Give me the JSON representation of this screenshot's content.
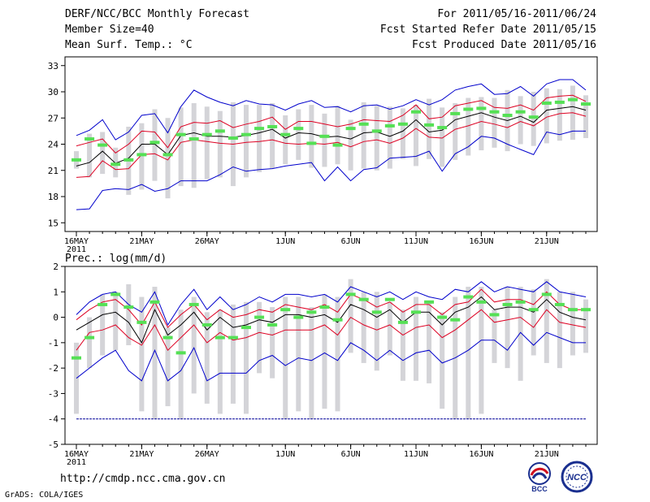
{
  "header": {
    "title": "DERF/NCC/BCC Monthly Forecast",
    "member_size": "Member Size=40",
    "variable": "Mean Surf. Temp.: °C",
    "forecast_period": "For 2011/05/16-2011/06/24",
    "started_refer_date": "Fcst Started Refer Date 2011/05/15",
    "produced_date": "Fcst Produced Date 2011/05/16"
  },
  "footer": {
    "url": "http://cmdp.ncc.cma.gov.cn",
    "credit": "GrADS: COLA/IGES"
  },
  "logos": {
    "left": "BCC",
    "right": "NCC"
  },
  "colors": {
    "box": "#d4d4d8",
    "marker": "#55e055",
    "envelope": "#0000cc",
    "spread": "#dd0022",
    "mean": "#000000",
    "baseline": "#000099"
  },
  "chart_data": [
    {
      "type": "line",
      "title": "Mean Surf. Temp.: °C",
      "ylim": [
        14,
        34
      ],
      "yticks": [
        15,
        18,
        21,
        24,
        27,
        30,
        33
      ],
      "x_ticks": [
        {
          "day": 1,
          "label": "16MAY",
          "sub": "2011"
        },
        {
          "day": 6,
          "label": "21MAY"
        },
        {
          "day": 11,
          "label": "26MAY"
        },
        {
          "day": 17,
          "label": "1JUN"
        },
        {
          "day": 22,
          "label": "6JUN"
        },
        {
          "day": 27,
          "label": "11JUN"
        },
        {
          "day": 32,
          "label": "16JUN"
        },
        {
          "day": 37,
          "label": "21JUN"
        }
      ],
      "days": [
        1,
        2,
        3,
        4,
        5,
        6,
        7,
        8,
        9,
        10,
        11,
        12,
        13,
        14,
        15,
        16,
        17,
        18,
        19,
        20,
        21,
        22,
        23,
        24,
        25,
        26,
        27,
        28,
        29,
        30,
        31,
        32,
        33,
        34,
        35,
        36,
        37,
        38,
        39,
        40
      ],
      "box_low": [
        21.2,
        20.2,
        20.6,
        20.2,
        18.2,
        18.8,
        19.8,
        17.8,
        19.2,
        19.0,
        20.0,
        20.2,
        19.2,
        20.2,
        20.8,
        21.2,
        21.7,
        22.2,
        21.3,
        21.4,
        21.7,
        21.0,
        21.2,
        21.0,
        21.2,
        22.3,
        21.5,
        22.3,
        21.4,
        22.2,
        22.7,
        23.3,
        23.6,
        23.2,
        24.0,
        23.8,
        24.1,
        24.4,
        24.5,
        24.7
      ],
      "box_high": [
        23.2,
        25.2,
        25.4,
        23.6,
        26.0,
        26.4,
        28.0,
        27.0,
        28.2,
        28.7,
        28.3,
        27.8,
        28.8,
        28.5,
        28.5,
        28.7,
        27.3,
        28.0,
        28.5,
        27.5,
        28.4,
        26.8,
        28.8,
        28.4,
        28.3,
        28.1,
        28.5,
        29.2,
        28.2,
        28.7,
        29.3,
        29.4,
        29.3,
        30.2,
        29.5,
        30.0,
        30.4,
        30.3,
        30.7,
        29.6
      ],
      "markers": [
        22.2,
        24.6,
        23.9,
        21.7,
        22.2,
        22.8,
        24.2,
        22.8,
        25.1,
        24.6,
        25.1,
        25.5,
        24.7,
        25.1,
        25.8,
        26.0,
        25.1,
        25.8,
        24.1,
        24.9,
        23.9,
        25.8,
        26.3,
        25.5,
        26.1,
        26.3,
        27.7,
        26.2,
        25.9,
        27.5,
        28.0,
        28.1,
        27.7,
        27.3,
        27.7,
        27.1,
        28.7,
        28.8,
        29.1,
        28.6
      ],
      "series": [
        {
          "name": "ensemble max",
          "values": [
            25.0,
            25.6,
            26.8,
            24.5,
            25.4,
            27.3,
            27.5,
            25.3,
            28.3,
            30.2,
            29.4,
            28.8,
            28.4,
            29.0,
            28.6,
            28.5,
            27.9,
            28.6,
            29.0,
            28.2,
            28.3,
            27.7,
            28.4,
            28.5,
            28.0,
            28.4,
            29.1,
            28.5,
            29.1,
            30.2,
            30.6,
            30.9,
            29.7,
            29.8,
            30.6,
            29.5,
            30.9,
            31.4,
            31.4,
            30.2
          ]
        },
        {
          "name": "mean + spread",
          "values": [
            23.8,
            24.2,
            24.6,
            23.0,
            24.0,
            25.5,
            25.4,
            23.6,
            26.0,
            26.5,
            26.4,
            26.7,
            25.9,
            26.3,
            26.6,
            27.1,
            25.7,
            26.6,
            26.6,
            26.3,
            26.0,
            26.3,
            26.8,
            26.7,
            26.6,
            27.3,
            28.5,
            26.9,
            27.1,
            28.4,
            28.7,
            29.0,
            28.2,
            28.1,
            28.5,
            27.9,
            29.3,
            29.5,
            29.6,
            28.9
          ]
        },
        {
          "name": "ensemble mean",
          "values": [
            21.5,
            21.9,
            23.2,
            21.8,
            22.4,
            24.0,
            24.0,
            22.8,
            25.0,
            25.3,
            24.9,
            24.9,
            24.8,
            25.0,
            25.3,
            25.7,
            24.7,
            25.3,
            25.2,
            24.8,
            24.9,
            24.6,
            25.3,
            25.4,
            24.9,
            25.5,
            26.8,
            25.4,
            25.6,
            26.8,
            27.2,
            27.6,
            27.1,
            26.7,
            27.2,
            26.5,
            27.9,
            28.1,
            28.3,
            27.9
          ]
        },
        {
          "name": "mean - spread",
          "values": [
            20.2,
            20.3,
            22.1,
            21.1,
            21.2,
            22.8,
            22.9,
            22.2,
            24.2,
            24.5,
            24.3,
            24.1,
            24.0,
            24.2,
            24.3,
            24.5,
            24.1,
            24.0,
            24.1,
            24.0,
            24.2,
            23.7,
            24.3,
            24.5,
            24.1,
            24.7,
            25.8,
            24.8,
            24.7,
            25.7,
            26.1,
            26.6,
            26.3,
            25.9,
            26.6,
            26.1,
            27.1,
            27.5,
            27.6,
            27.2
          ]
        },
        {
          "name": "ensemble min",
          "values": [
            16.5,
            16.6,
            18.7,
            18.9,
            18.8,
            19.4,
            18.6,
            18.9,
            19.8,
            19.8,
            19.8,
            20.5,
            21.4,
            20.9,
            21.1,
            21.2,
            21.5,
            21.7,
            21.9,
            19.8,
            21.4,
            19.8,
            21.1,
            21.3,
            22.4,
            22.5,
            22.6,
            23.2,
            20.9,
            22.9,
            23.7,
            24.9,
            24.7,
            24.0,
            23.4,
            22.8,
            25.4,
            25.1,
            25.5,
            25.5
          ]
        }
      ]
    },
    {
      "type": "line",
      "title": "Prec.: log(mm/d)",
      "ylim": [
        -5,
        2
      ],
      "yticks": [
        -5,
        -4,
        -3,
        -2,
        -1,
        0,
        1,
        2
      ],
      "x_ticks": [
        {
          "day": 1,
          "label": "16MAY",
          "sub": "2011"
        },
        {
          "day": 6,
          "label": "21MAY"
        },
        {
          "day": 11,
          "label": "26MAY"
        },
        {
          "day": 17,
          "label": "1JUN"
        },
        {
          "day": 22,
          "label": "6JUN"
        },
        {
          "day": 27,
          "label": "11JUN"
        },
        {
          "day": 32,
          "label": "16JUN"
        },
        {
          "day": 37,
          "label": "21JUN"
        }
      ],
      "days": [
        1,
        2,
        3,
        4,
        5,
        6,
        7,
        8,
        9,
        10,
        11,
        12,
        13,
        14,
        15,
        16,
        17,
        18,
        19,
        20,
        21,
        22,
        23,
        24,
        25,
        26,
        27,
        28,
        29,
        30,
        31,
        32,
        33,
        34,
        35,
        36,
        37,
        38,
        39,
        40
      ],
      "box_low": [
        -3.8,
        -2.0,
        -1.5,
        -1.3,
        -1.1,
        -3.7,
        -4.0,
        -3.5,
        -4.0,
        -3.0,
        -3.4,
        -3.8,
        -3.4,
        -3.8,
        -2.2,
        -2.4,
        -4.0,
        -3.7,
        -4.0,
        -3.6,
        -3.7,
        -1.4,
        -1.8,
        -2.1,
        -1.5,
        -2.5,
        -2.5,
        -2.6,
        -3.6,
        -4.0,
        -4.0,
        -3.8,
        -1.8,
        -2.0,
        -2.5,
        -1.5,
        -1.8,
        -2.0,
        -1.5,
        -1.4
      ],
      "box_high": [
        -1.0,
        0.0,
        0.9,
        1.0,
        1.3,
        0.8,
        1.2,
        -0.4,
        0.3,
        0.8,
        0.2,
        0.3,
        0.5,
        0.6,
        0.6,
        0.4,
        0.8,
        0.8,
        0.4,
        0.9,
        0.8,
        1.5,
        1.0,
        1.0,
        0.6,
        0.3,
        0.8,
        0.6,
        0.2,
        0.8,
        1.2,
        1.2,
        0.3,
        1.2,
        1.2,
        1.1,
        1.5,
        1.0,
        1.0,
        0.7
      ],
      "markers": [
        -1.6,
        -0.8,
        0.5,
        0.9,
        0.4,
        -0.2,
        0.6,
        -0.8,
        -1.4,
        0.5,
        -0.3,
        -0.8,
        -0.8,
        -0.4,
        0.0,
        -0.3,
        0.3,
        0.0,
        0.2,
        0.4,
        -0.1,
        0.9,
        0.7,
        0.2,
        0.7,
        -0.2,
        0.2,
        0.6,
        0.0,
        -0.1,
        0.8,
        0.6,
        0.1,
        0.5,
        0.6,
        0.3,
        0.9,
        0.5,
        0.3,
        0.3
      ],
      "baseline": -4.0,
      "series": [
        {
          "name": "ensemble max",
          "values": [
            0.1,
            0.6,
            0.9,
            1.0,
            0.5,
            0.2,
            1.0,
            -0.3,
            0.5,
            1.1,
            0.3,
            0.8,
            0.3,
            0.5,
            0.8,
            0.6,
            0.9,
            0.9,
            0.8,
            0.9,
            0.6,
            1.2,
            1.0,
            0.8,
            1.0,
            0.7,
            1.0,
            0.8,
            0.7,
            1.1,
            1.0,
            1.4,
            1.0,
            1.2,
            1.1,
            1.0,
            1.4,
            1.0,
            0.9,
            0.8
          ]
        },
        {
          "name": "mean + spread",
          "values": [
            -0.1,
            0.3,
            0.6,
            0.7,
            0.3,
            -0.3,
            0.6,
            -0.4,
            0.1,
            0.5,
            -0.1,
            0.3,
            0.0,
            0.1,
            0.3,
            0.2,
            0.5,
            0.4,
            0.3,
            0.5,
            0.2,
            0.9,
            0.7,
            0.4,
            0.6,
            0.2,
            0.5,
            0.5,
            0.1,
            0.5,
            0.6,
            1.1,
            0.6,
            0.7,
            0.7,
            0.5,
            1.0,
            0.5,
            0.3,
            0.3
          ]
        },
        {
          "name": "ensemble mean",
          "values": [
            -0.5,
            -0.2,
            0.1,
            0.2,
            -0.2,
            -1.0,
            0.3,
            -0.7,
            -0.3,
            0.2,
            -0.5,
            0.0,
            -0.4,
            -0.3,
            -0.1,
            -0.2,
            0.1,
            0.1,
            0.0,
            0.1,
            -0.2,
            0.5,
            0.3,
            0.0,
            0.3,
            -0.2,
            0.2,
            0.2,
            -0.3,
            0.2,
            0.4,
            0.8,
            0.3,
            0.4,
            0.4,
            0.2,
            0.7,
            0.2,
            0.0,
            -0.1
          ]
        },
        {
          "name": "mean - spread",
          "values": [
            -1.3,
            -0.6,
            -0.5,
            -0.3,
            -0.8,
            -1.1,
            -0.3,
            -1.3,
            -0.8,
            -0.3,
            -1.0,
            -0.6,
            -0.9,
            -0.8,
            -0.6,
            -0.7,
            -0.5,
            -0.5,
            -0.5,
            -0.3,
            -0.7,
            0.0,
            -0.3,
            -0.5,
            -0.3,
            -0.7,
            -0.4,
            -0.3,
            -0.8,
            -0.5,
            -0.1,
            0.3,
            -0.2,
            -0.1,
            0.0,
            -0.4,
            0.3,
            -0.2,
            -0.3,
            -0.4
          ]
        },
        {
          "name": "ensemble min",
          "values": [
            -2.4,
            -2.0,
            -1.6,
            -1.3,
            -2.1,
            -2.5,
            -1.3,
            -2.5,
            -2.1,
            -1.2,
            -2.5,
            -2.2,
            -2.2,
            -2.2,
            -1.7,
            -1.5,
            -1.9,
            -1.6,
            -1.7,
            -1.4,
            -1.7,
            -1.0,
            -1.3,
            -1.7,
            -1.3,
            -1.7,
            -1.4,
            -1.3,
            -1.8,
            -1.6,
            -1.3,
            -0.9,
            -0.9,
            -1.3,
            -0.6,
            -1.1,
            -0.6,
            -0.8,
            -1.0,
            -1.0
          ]
        }
      ]
    }
  ]
}
